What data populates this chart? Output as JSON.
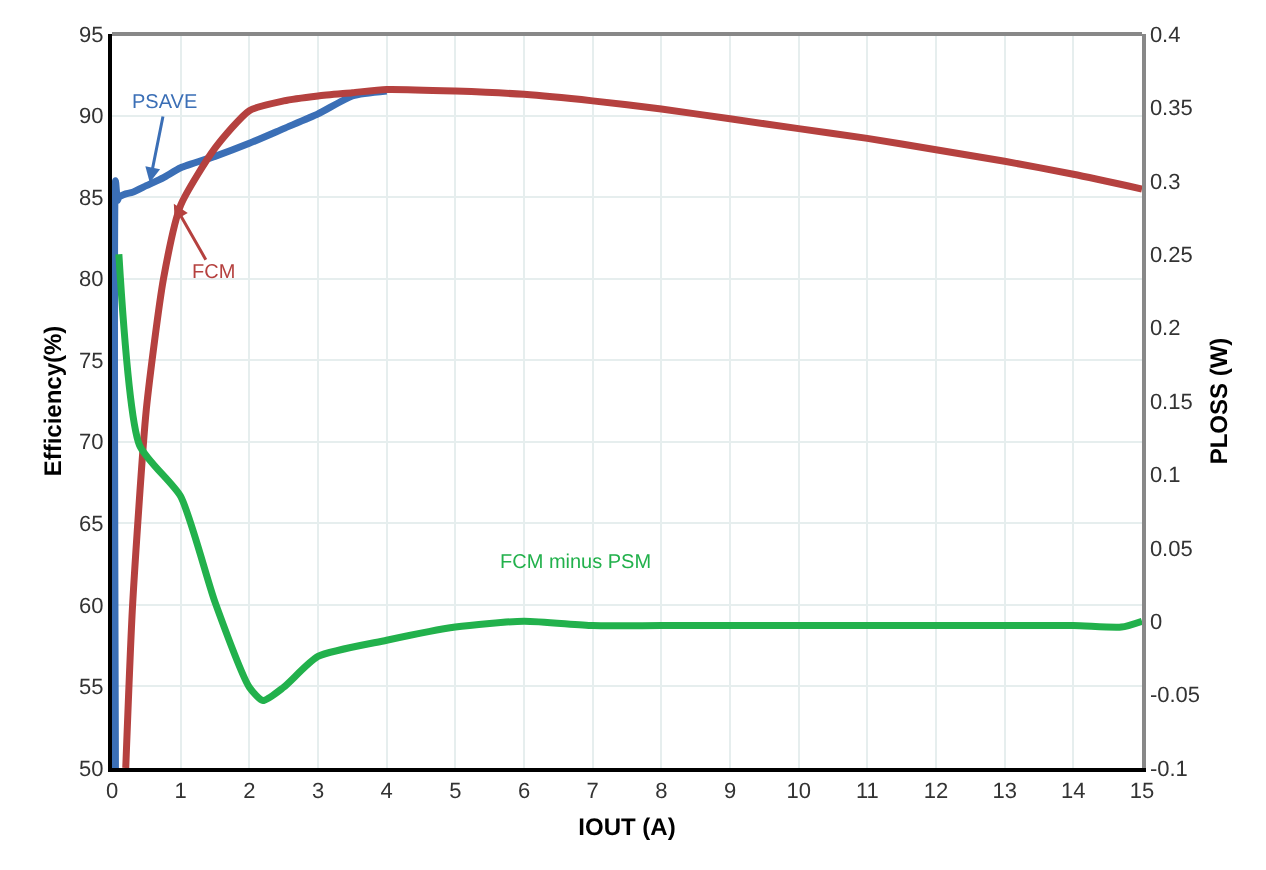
{
  "chart_data": {
    "type": "line",
    "xlabel": "IOUT (A)",
    "ylabel": "Efficiency(%)",
    "y2label": "PLOSS (W)",
    "xlim": [
      0,
      15
    ],
    "xticks": [
      0,
      1,
      2,
      3,
      4,
      5,
      6,
      7,
      8,
      9,
      10,
      11,
      12,
      13,
      14,
      15
    ],
    "ylim": [
      50,
      95
    ],
    "yticks": [
      50,
      55,
      60,
      65,
      70,
      75,
      80,
      85,
      90,
      95
    ],
    "y2lim": [
      -0.1,
      0.4
    ],
    "y2ticks": [
      -0.1,
      -0.05,
      0,
      0.05,
      0.1,
      0.15,
      0.2,
      0.25,
      0.3,
      0.35,
      0.4
    ],
    "grid": true,
    "marker": "none",
    "line_style": "solid",
    "series": [
      {
        "color": "#3b6fb6",
        "x": [
          0.05,
          0.05,
          0.08,
          0.1,
          0.2,
          0.3,
          0.5,
          0.75,
          1,
          1.5,
          2,
          2.5,
          3,
          3.5,
          4
        ],
        "values": [
          50,
          86,
          84.8,
          85,
          85.2,
          85.3,
          85.7,
          86.2,
          86.8,
          87.5,
          88.3,
          89.2,
          90.1,
          91.2,
          91.5
        ]
      },
      {
        "color": "#b5413f",
        "x": [
          0.2,
          0.3,
          0.5,
          0.75,
          1,
          1.5,
          2,
          2.5,
          3,
          3.5,
          4,
          5,
          6,
          7,
          8,
          9,
          10,
          11,
          12,
          13,
          14,
          15
        ],
        "values": [
          50,
          60,
          72,
          80,
          84.5,
          88,
          90.3,
          90.9,
          91.2,
          91.4,
          91.6,
          91.5,
          91.3,
          90.9,
          90.4,
          89.8,
          89.2,
          88.6,
          87.9,
          87.2,
          86.4,
          85.5
        ]
      },
      {
        "color": "#22b14c",
        "axis": "y2",
        "x": [
          0.1,
          0.4,
          1,
          1.5,
          2,
          2.2,
          2.5,
          3,
          4,
          5,
          6,
          7,
          8,
          10,
          12,
          14,
          14.7,
          15
        ],
        "values": [
          0.25,
          0.12,
          0.085,
          0.013,
          -0.045,
          -0.054,
          -0.045,
          -0.024,
          -0.013,
          -0.004,
          0,
          -0.003,
          -0.003,
          -0.003,
          -0.003,
          -0.003,
          -0.004,
          0
        ]
      }
    ],
    "annotations": [
      {
        "text": "PSAVE",
        "x": 0.55,
        "y": 85.9
      },
      {
        "text": "FCM",
        "x": 0.9,
        "y": 84.6
      },
      "FCM minus PSM"
    ]
  }
}
